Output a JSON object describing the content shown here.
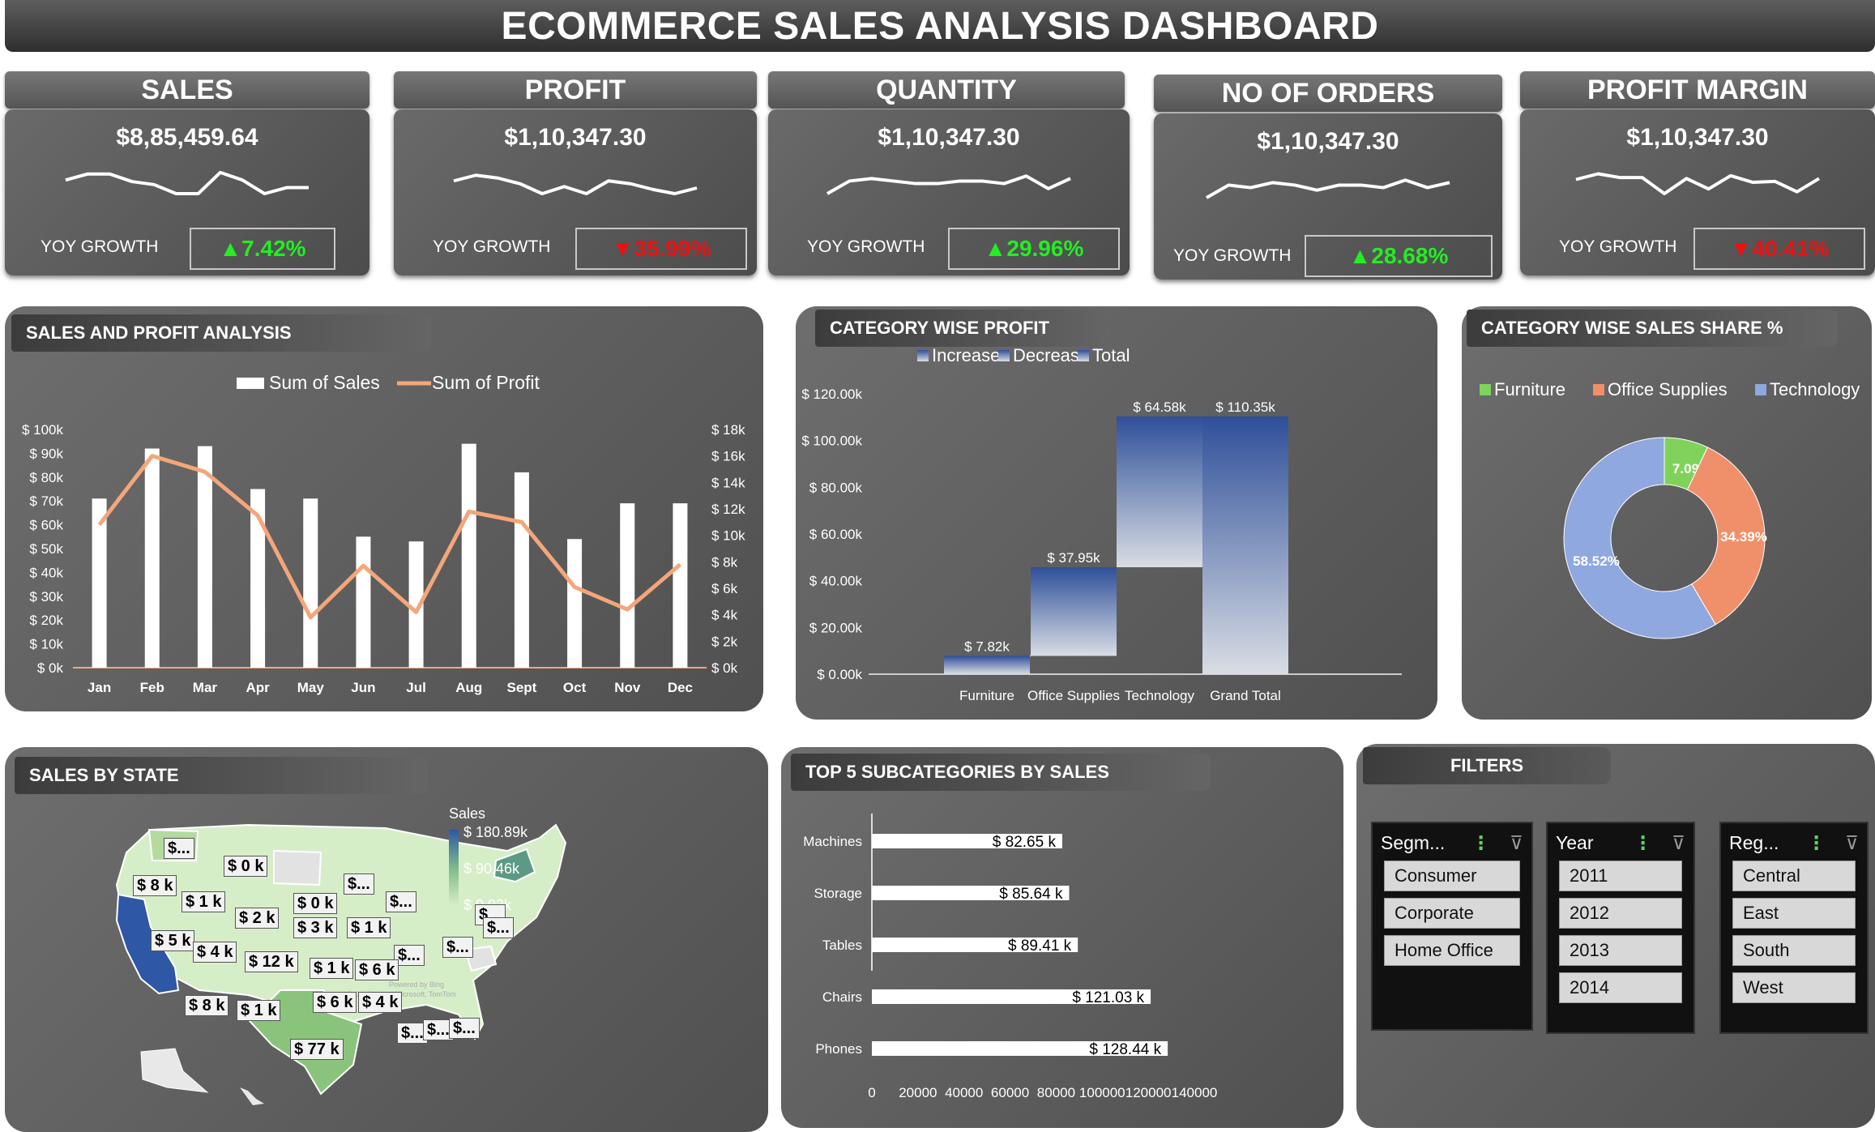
{
  "title": "ECOMMERCE SALES ANALYSIS DASHBOARD",
  "kpis": [
    {
      "label": "SALES",
      "value": "$8,85,459.64",
      "growth_label": "YOY GROWTH",
      "growth": "7.42%",
      "trend": "up"
    },
    {
      "label": "PROFIT",
      "value": "$1,10,347.30",
      "growth_label": "YOY GROWTH",
      "growth": "35.99%",
      "trend": "down"
    },
    {
      "label": "QUANTITY",
      "value": "$1,10,347.30",
      "growth_label": "YOY GROWTH",
      "growth": "29.96%",
      "trend": "up"
    },
    {
      "label": "NO OF ORDERS",
      "value": "$1,10,347.30",
      "growth_label": "YOY GROWTH",
      "growth": "28.68%",
      "trend": "up"
    },
    {
      "label": "PROFIT MARGIN",
      "value": "$1,10,347.30",
      "growth_label": "YOY GROWTH",
      "growth": "40.41%",
      "trend": "down"
    }
  ],
  "icons": {
    "up": "triangle-up-icon",
    "down": "triangle-down-icon",
    "filter": "filter-clear-icon",
    "multiselect": "multi-select-icon"
  },
  "colors": {
    "up": "#22ee22",
    "down": "#ee1111",
    "sales_bar": "#ffffff",
    "profit_line": "#f4a67a",
    "furniture": "#7fd35a",
    "office": "#f0906a",
    "technology": "#8fa8e0",
    "map_high": "#2e57a6",
    "map_low": "#d6eec8"
  },
  "panels": {
    "sales_profit": "SALES AND PROFIT ANALYSIS",
    "category_profit": "CATEGORY WISE PROFIT",
    "category_share": "CATEGORY WISE SALES SHARE %",
    "sales_by_state": "SALES BY STATE",
    "top5": "TOP 5 SUBCATEGORIES BY SALES",
    "filters": "FILTERS"
  },
  "chart_data": [
    {
      "type": "bar",
      "title": "SALES AND PROFIT ANALYSIS",
      "categories": [
        "Jan",
        "Feb",
        "Mar",
        "Apr",
        "May",
        "Jun",
        "Jul",
        "Aug",
        "Sept",
        "Oct",
        "Nov",
        "Dec"
      ],
      "series": [
        {
          "name": "Sum of Sales",
          "type": "bar",
          "axis": "left",
          "values": [
            71000,
            92000,
            93000,
            75000,
            71000,
            55000,
            53000,
            94000,
            82000,
            54000,
            69000,
            69000
          ]
        },
        {
          "name": "Sum of Profit",
          "type": "line",
          "axis": "right",
          "values": [
            10800,
            16000,
            14800,
            11500,
            3800,
            7700,
            4200,
            11800,
            11000,
            6100,
            4400,
            7800
          ]
        }
      ],
      "y_left_ticks": [
        "$ 0k",
        "$ 10k",
        "$ 20k",
        "$ 30k",
        "$ 40k",
        "$ 50k",
        "$ 60k",
        "$ 70k",
        "$ 80k",
        "$ 90k",
        "$ 100k"
      ],
      "y_right_ticks": [
        "$ 0k",
        "$ 2k",
        "$ 4k",
        "$ 6k",
        "$ 8k",
        "$ 10k",
        "$ 12k",
        "$ 14k",
        "$ 16k",
        "$ 18k"
      ],
      "ylim_left": [
        0,
        100000
      ],
      "ylim_right": [
        0,
        18000
      ]
    },
    {
      "type": "bar",
      "subtype": "waterfall",
      "title": "CATEGORY WISE PROFIT",
      "legend": [
        "Increase",
        "Decrease",
        "Total"
      ],
      "categories": [
        "Furniture",
        "Office Supplies",
        "Technology",
        "Grand Total"
      ],
      "values": [
        7820,
        37950,
        64580,
        110350
      ],
      "data_labels": [
        "$ 7.82k",
        "$ 37.95k",
        "$ 64.58k",
        "$ 110.35k"
      ],
      "y_ticks": [
        "$ 0.00k",
        "$ 20.00k",
        "$ 40.00k",
        "$ 60.00k",
        "$ 80.00k",
        "$ 100.00k",
        "$ 120.00k"
      ],
      "ylim": [
        0,
        120000
      ]
    },
    {
      "type": "pie",
      "subtype": "donut",
      "title": "CATEGORY WISE SALES SHARE %",
      "categories": [
        "Furniture",
        "Office Supplies",
        "Technology"
      ],
      "values": [
        7.09,
        34.39,
        58.52
      ],
      "data_labels": [
        "7.09%",
        "34.39%",
        "58.52%"
      ]
    },
    {
      "type": "bar",
      "orientation": "horizontal",
      "title": "TOP 5 SUBCATEGORIES BY SALES",
      "categories": [
        "Machines",
        "Storage",
        "Tables",
        "Chairs",
        "Phones"
      ],
      "values": [
        82650,
        85640,
        89410,
        121030,
        128440
      ],
      "data_labels": [
        "$ 82.65 k",
        "$ 85.64 k",
        "$ 89.41 k",
        "$ 121.03 k",
        "$ 128.44 k"
      ],
      "x_ticks": [
        "0",
        "20000",
        "40000",
        "60000",
        "80000",
        "100000",
        "120000",
        "140000"
      ],
      "xlim": [
        0,
        140000
      ]
    }
  ],
  "map": {
    "legend_title": "Sales",
    "legend_max": "$ 180.89k",
    "legend_mid": "$ 90.46k",
    "legend_min": "$ 0.03k",
    "labels": [
      "$...",
      "$ 0 k",
      "$ 8 k",
      "$ 1 k",
      "$ 0 k",
      "$...",
      "$...",
      "$ 2 k",
      "$...",
      "$ 5 k",
      "$ 4 k",
      "$ 3 k",
      "$ 1 k",
      "$...",
      "$...",
      "$...",
      "$ 12 k",
      "$ 1 k",
      "$ 6 k",
      "$ 8 k",
      "$ 1 k",
      "$ 6 k",
      "$ 4 k",
      "$...",
      "$...",
      "$...",
      "$ 77 k"
    ],
    "attribution_1": "Powered by Bing",
    "attribution_2": "© GeoNames, Microsoft, TomTom"
  },
  "filters": {
    "segment": {
      "title": "Segm...",
      "items": [
        "Consumer",
        "Corporate",
        "Home Office"
      ]
    },
    "year": {
      "title": "Year",
      "items": [
        "2011",
        "2012",
        "2013",
        "2014"
      ]
    },
    "region": {
      "title": "Reg...",
      "items": [
        "Central",
        "East",
        "South",
        "West"
      ]
    }
  }
}
